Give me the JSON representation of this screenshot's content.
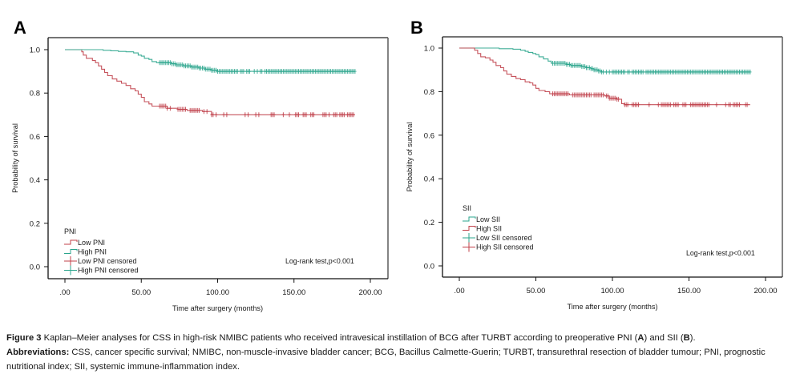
{
  "chart_data": [
    {
      "type": "line",
      "subtype": "kaplan-meier",
      "panel": "A",
      "title": "",
      "xlabel": "Time after surgery (months)",
      "ylabel": "Probability of survival",
      "xlim": [
        0,
        200
      ],
      "ylim": [
        0.0,
        1.0
      ],
      "x_ticks": [
        ".00",
        "50.00",
        "100.00",
        "150.00",
        "200.00"
      ],
      "x_tick_values": [
        0,
        50,
        100,
        150,
        200
      ],
      "y_ticks": [
        "0.0",
        "0.2",
        "0.4",
        "0.6",
        "0.8",
        "1.0"
      ],
      "y_tick_values": [
        0,
        0.2,
        0.4,
        0.6,
        0.8,
        1.0
      ],
      "grid": false,
      "legend_title": "PNI",
      "legend_position": "bottom-left",
      "legend": [
        {
          "label": "Low PNI",
          "kind": "step",
          "color": "#c0404a"
        },
        {
          "label": "High PNI",
          "kind": "step",
          "color": "#2aa58c"
        },
        {
          "label": "Low PNI censored",
          "kind": "cross",
          "color": "#c0404a"
        },
        {
          "label": "High PNI censored",
          "kind": "cross",
          "color": "#2aa58c"
        }
      ],
      "annotation": "Log-rank test,p<0.001",
      "series": [
        {
          "name": "Low PNI",
          "color": "#c0404a",
          "steps": [
            [
              0,
              1.0
            ],
            [
              10,
              1.0
            ],
            [
              11,
              0.99
            ],
            [
              12,
              0.975
            ],
            [
              14,
              0.96
            ],
            [
              18,
              0.95
            ],
            [
              20,
              0.94
            ],
            [
              22,
              0.925
            ],
            [
              24,
              0.91
            ],
            [
              26,
              0.895
            ],
            [
              28,
              0.88
            ],
            [
              31,
              0.865
            ],
            [
              34,
              0.855
            ],
            [
              37,
              0.845
            ],
            [
              40,
              0.835
            ],
            [
              43,
              0.82
            ],
            [
              46,
              0.81
            ],
            [
              48,
              0.795
            ],
            [
              50,
              0.78
            ],
            [
              52,
              0.76
            ],
            [
              55,
              0.75
            ],
            [
              57,
              0.74
            ],
            [
              62,
              0.74
            ],
            [
              67,
              0.73
            ],
            [
              74,
              0.725
            ],
            [
              80,
              0.72
            ],
            [
              90,
              0.715
            ],
            [
              96,
              0.7
            ],
            [
              190,
              0.7
            ]
          ],
          "censored": [
            62,
            63,
            64,
            65,
            66,
            67,
            69,
            74,
            75,
            76,
            77,
            78,
            79,
            82,
            83,
            84,
            85,
            86,
            87,
            88,
            91,
            93,
            96,
            97,
            99,
            104,
            106,
            118,
            120,
            125,
            127,
            135,
            136,
            137,
            143,
            147,
            151,
            152,
            153,
            156,
            157,
            158,
            161,
            162,
            163,
            169,
            170,
            171,
            173,
            176,
            177,
            178,
            180,
            181,
            182,
            183,
            185,
            186,
            187,
            188,
            189
          ]
        },
        {
          "name": "High PNI",
          "color": "#2aa58c",
          "steps": [
            [
              0,
              1.0
            ],
            [
              20,
              1.0
            ],
            [
              25,
              0.997
            ],
            [
              30,
              0.995
            ],
            [
              35,
              0.992
            ],
            [
              40,
              0.99
            ],
            [
              45,
              0.985
            ],
            [
              48,
              0.975
            ],
            [
              50,
              0.97
            ],
            [
              52,
              0.96
            ],
            [
              55,
              0.955
            ],
            [
              57,
              0.945
            ],
            [
              60,
              0.94
            ],
            [
              70,
              0.935
            ],
            [
              73,
              0.93
            ],
            [
              78,
              0.925
            ],
            [
              83,
              0.92
            ],
            [
              88,
              0.915
            ],
            [
              92,
              0.91
            ],
            [
              96,
              0.905
            ],
            [
              100,
              0.9
            ],
            [
              190,
              0.9
            ]
          ],
          "censored": [
            62,
            63,
            64,
            65,
            66,
            67,
            68,
            69,
            70,
            71,
            72,
            73,
            74,
            75,
            76,
            77,
            78,
            79,
            80,
            81,
            82,
            83,
            84,
            85,
            86,
            87,
            88,
            89,
            90,
            91,
            92,
            93,
            94,
            95,
            96,
            97,
            98,
            99,
            100,
            101,
            102,
            103,
            104,
            105,
            106,
            107,
            108,
            109,
            110,
            111,
            112,
            113,
            115,
            116,
            117,
            119,
            120,
            121,
            124,
            126,
            128,
            129,
            131,
            132,
            133,
            134,
            135,
            136,
            137,
            138,
            139,
            140,
            141,
            142,
            143,
            144,
            145,
            146,
            147,
            148,
            149,
            150,
            151,
            152,
            153,
            154,
            155,
            156,
            157,
            158,
            159,
            160,
            161,
            162,
            163,
            164,
            165,
            166,
            167,
            168,
            169,
            170,
            171,
            172,
            173,
            174,
            175,
            176,
            177,
            178,
            179,
            180,
            181,
            182,
            183,
            184,
            185,
            186,
            187,
            188,
            189,
            190
          ]
        }
      ]
    },
    {
      "type": "line",
      "subtype": "kaplan-meier",
      "panel": "B",
      "title": "",
      "xlabel": "Time after surgery (months)",
      "ylabel": "Probability of survival",
      "xlim": [
        0,
        200
      ],
      "ylim": [
        0.0,
        1.0
      ],
      "x_ticks": [
        ".00",
        "50.00",
        "100.00",
        "150.00",
        "200.00"
      ],
      "x_tick_values": [
        0,
        50,
        100,
        150,
        200
      ],
      "y_ticks": [
        "0.0",
        "0.2",
        "0.4",
        "0.6",
        "0.8",
        "1.0"
      ],
      "y_tick_values": [
        0,
        0.2,
        0.4,
        0.6,
        0.8,
        1.0
      ],
      "grid": false,
      "legend_title": "SII",
      "legend_position": "bottom-left",
      "legend": [
        {
          "label": "Low SII",
          "kind": "step",
          "color": "#2aa58c"
        },
        {
          "label": "High SII",
          "kind": "step",
          "color": "#c0404a"
        },
        {
          "label": "Low SII censored",
          "kind": "cross",
          "color": "#2aa58c"
        },
        {
          "label": "High SII censored",
          "kind": "cross",
          "color": "#c0404a"
        }
      ],
      "annotation": "Log-rank test,p<0.001",
      "series": [
        {
          "name": "Low SII",
          "color": "#2aa58c",
          "steps": [
            [
              0,
              1.0
            ],
            [
              22,
              1.0
            ],
            [
              26,
              0.997
            ],
            [
              35,
              0.995
            ],
            [
              40,
              0.99
            ],
            [
              43,
              0.985
            ],
            [
              45,
              0.98
            ],
            [
              48,
              0.975
            ],
            [
              50,
              0.97
            ],
            [
              52,
              0.96
            ],
            [
              55,
              0.95
            ],
            [
              58,
              0.94
            ],
            [
              60,
              0.93
            ],
            [
              70,
              0.925
            ],
            [
              73,
              0.92
            ],
            [
              80,
              0.915
            ],
            [
              83,
              0.91
            ],
            [
              86,
              0.905
            ],
            [
              88,
              0.9
            ],
            [
              91,
              0.895
            ],
            [
              93,
              0.89
            ],
            [
              190,
              0.89
            ]
          ],
          "censored": [
            61,
            62,
            63,
            64,
            65,
            66,
            67,
            68,
            69,
            70,
            71,
            72,
            73,
            74,
            75,
            76,
            77,
            78,
            79,
            80,
            81,
            82,
            83,
            84,
            85,
            86,
            87,
            88,
            89,
            90,
            91,
            92,
            93,
            94,
            96,
            98,
            100,
            101,
            102,
            103,
            104,
            105,
            106,
            107,
            108,
            110,
            111,
            113,
            114,
            115,
            116,
            117,
            118,
            119,
            120,
            122,
            123,
            124,
            125,
            126,
            127,
            128,
            129,
            130,
            131,
            132,
            133,
            134,
            135,
            136,
            137,
            138,
            139,
            140,
            141,
            142,
            143,
            144,
            145,
            146,
            147,
            148,
            149,
            150,
            151,
            152,
            153,
            154,
            155,
            156,
            157,
            158,
            159,
            160,
            161,
            162,
            163,
            164,
            165,
            166,
            167,
            168,
            169,
            170,
            171,
            172,
            173,
            174,
            175,
            176,
            177,
            178,
            179,
            180,
            181,
            182,
            183,
            184,
            185,
            186,
            187,
            188,
            189,
            190
          ]
        },
        {
          "name": "High SII",
          "color": "#c0404a",
          "steps": [
            [
              0,
              1.0
            ],
            [
              8,
              1.0
            ],
            [
              10,
              0.99
            ],
            [
              12,
              0.975
            ],
            [
              14,
              0.96
            ],
            [
              17,
              0.955
            ],
            [
              20,
              0.945
            ],
            [
              22,
              0.935
            ],
            [
              24,
              0.92
            ],
            [
              27,
              0.91
            ],
            [
              29,
              0.895
            ],
            [
              31,
              0.88
            ],
            [
              34,
              0.87
            ],
            [
              37,
              0.86
            ],
            [
              40,
              0.855
            ],
            [
              43,
              0.845
            ],
            [
              46,
              0.84
            ],
            [
              48,
              0.83
            ],
            [
              50,
              0.815
            ],
            [
              52,
              0.805
            ],
            [
              56,
              0.8
            ],
            [
              59,
              0.79
            ],
            [
              72,
              0.785
            ],
            [
              95,
              0.78
            ],
            [
              98,
              0.77
            ],
            [
              103,
              0.765
            ],
            [
              106,
              0.745
            ],
            [
              108,
              0.74
            ],
            [
              190,
              0.74
            ]
          ],
          "censored": [
            61,
            62,
            63,
            64,
            65,
            66,
            67,
            68,
            69,
            70,
            71,
            74,
            75,
            76,
            77,
            78,
            79,
            80,
            81,
            82,
            83,
            84,
            85,
            86,
            88,
            89,
            90,
            91,
            92,
            93,
            94,
            96,
            97,
            98,
            99,
            100,
            101,
            102,
            103,
            104,
            108,
            109,
            110,
            113,
            114,
            115,
            116,
            117,
            124,
            130,
            132,
            133,
            134,
            135,
            136,
            137,
            138,
            140,
            141,
            142,
            143,
            146,
            147,
            148,
            151,
            152,
            153,
            154,
            155,
            156,
            157,
            158,
            159,
            160,
            161,
            162,
            163,
            168,
            174,
            176,
            177,
            179,
            180,
            181,
            182,
            183,
            187,
            188
          ]
        }
      ]
    }
  ],
  "panels": {
    "a_letter": "A",
    "b_letter": "B"
  },
  "caption": {
    "figure_label": "Figure 3",
    "figure_text_1": " Kaplan–Meier analyses for CSS in high-risk NMIBC patients who received intravesical instillation of BCG after TURBT according to preoperative PNI (",
    "figure_ref_a": "A",
    "figure_text_2": ") and SII (",
    "figure_ref_b": "B",
    "figure_text_3": ").",
    "abbrev_label": "Abbreviations:",
    "abbrev_text": " CSS, cancer specific survival; NMIBC, non-muscle-invasive bladder cancer; BCG, Bacillus Calmette-Guerin; TURBT, transurethral resection of bladder tumour; PNI, prognostic nutritional index; SII, systemic immune-inflammation index."
  }
}
